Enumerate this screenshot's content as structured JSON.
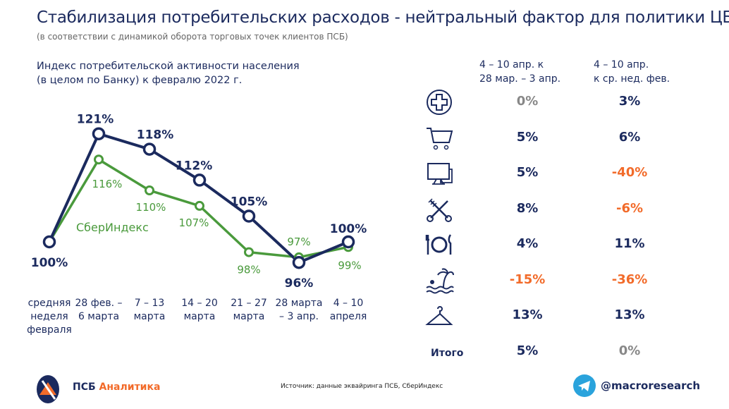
{
  "title": "Стабилизация потребительских расходов - нейтральный фактор для политики ЦБ",
  "subtitle": "(в соответствии с динамикой оборота торговых точек клиентов ПСБ)",
  "chart_title_line1": "Индекс потребительской активности населения",
  "chart_title_line2": "(в целом по Банку) к февралю 2022 г.",
  "colors": {
    "navy": "#1b2a5e",
    "green": "#4a9a3c",
    "orange": "#f26b2a",
    "gray": "#888888"
  },
  "chart_data": {
    "type": "line",
    "categories": [
      [
        "средняя",
        "неделя",
        "февраля"
      ],
      [
        "28 фев. –",
        "6 марта"
      ],
      [
        "7 – 13",
        "марта"
      ],
      [
        "14 – 20",
        "марта"
      ],
      [
        "21 – 27",
        "марта"
      ],
      [
        "28 марта",
        "– 3 апр."
      ],
      [
        "4 – 10",
        "апреля"
      ]
    ],
    "series": [
      {
        "values": [
          100,
          121,
          118,
          112,
          105,
          96,
          100
        ],
        "labels": [
          "100%",
          "121%",
          "118%",
          "112%",
          "105%",
          "96%",
          "100%"
        ],
        "color": "#1b2a5e"
      },
      {
        "name": "СберИндекс",
        "values": [
          100,
          116,
          110,
          107,
          98,
          97,
          99
        ],
        "labels": [
          "",
          "116%",
          "110%",
          "107%",
          "98%",
          "97%",
          "99%"
        ],
        "color": "#4a9a3c"
      }
    ]
  },
  "table": {
    "headers": [
      [
        "4 – 10 апр. к",
        "28 мар. – 3 апр."
      ],
      [
        "4 – 10 апр.",
        "к ср. нед. фев."
      ]
    ],
    "rows": [
      {
        "icon": "medical-cross-icon",
        "a": "0%",
        "b": "3%",
        "ac": "gray",
        "bc": "navy"
      },
      {
        "icon": "shopping-cart-icon",
        "a": "5%",
        "b": "6%",
        "ac": "navy",
        "bc": "navy"
      },
      {
        "icon": "computer-icon",
        "a": "5%",
        "b": "-40%",
        "ac": "navy",
        "bc": "orange"
      },
      {
        "icon": "scissors-comb-icon",
        "a": "8%",
        "b": "-6%",
        "ac": "navy",
        "bc": "orange"
      },
      {
        "icon": "plate-cutlery-icon",
        "a": "4%",
        "b": "11%",
        "ac": "navy",
        "bc": "navy"
      },
      {
        "icon": "beach-palm-icon",
        "a": "-15%",
        "b": "-36%",
        "ac": "orange",
        "bc": "orange"
      },
      {
        "icon": "hanger-icon",
        "a": "13%",
        "b": "13%",
        "ac": "navy",
        "bc": "navy"
      },
      {
        "label": "Итого",
        "a": "5%",
        "b": "0%",
        "ac": "navy",
        "bc": "gray"
      }
    ]
  },
  "footer": {
    "logo_text": "ПСБ",
    "logo_accent": "Аналитика",
    "source": "Источник: данные эквайринга ПСБ, СберИндекс",
    "telegram": "@macroresearch"
  }
}
